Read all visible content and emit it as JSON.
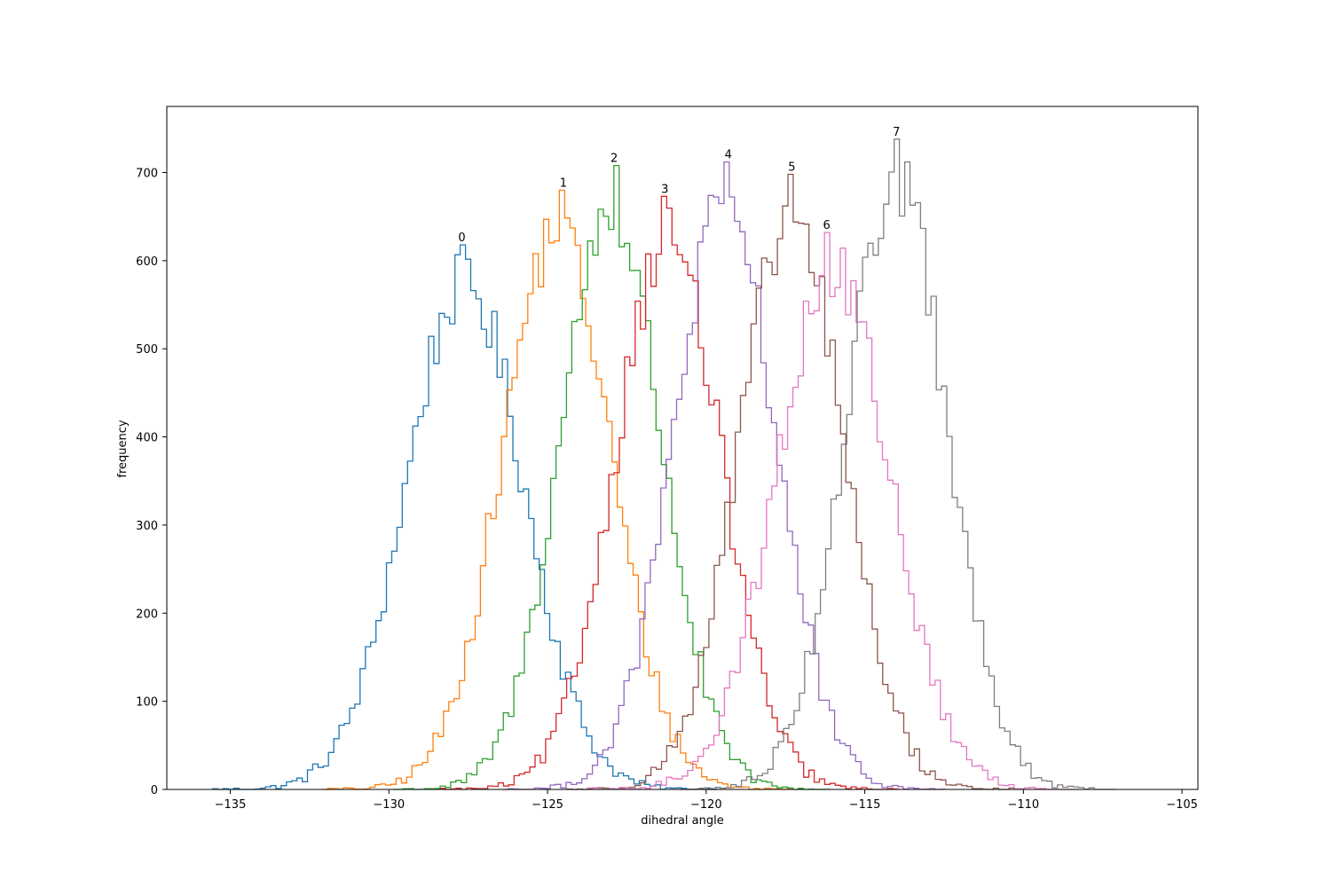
{
  "chart_data": {
    "type": "histogram",
    "xlabel": "dihedral angle",
    "ylabel": "frequency",
    "xlim": [
      -137,
      -104.5
    ],
    "ylim": [
      0,
      775
    ],
    "xticks": [
      -135,
      -130,
      -125,
      -120,
      -115,
      -110,
      -105
    ],
    "yticks": [
      0,
      100,
      200,
      300,
      400,
      500,
      600,
      700
    ],
    "grid": false,
    "legend": "none",
    "series": [
      {
        "label": "0",
        "color": "#1f77b4",
        "mean": -127.6,
        "sd": 1.85,
        "peak_x": -127.7,
        "peak_y": 618
      },
      {
        "label": "1",
        "color": "#ff7f0e",
        "mean": -124.7,
        "sd": 1.72,
        "peak_x": -124.5,
        "peak_y": 680
      },
      {
        "label": "2",
        "color": "#2ca02c",
        "mean": -123.0,
        "sd": 1.6,
        "peak_x": -122.9,
        "peak_y": 708
      },
      {
        "label": "3",
        "color": "#d62728",
        "mean": -121.2,
        "sd": 1.67,
        "peak_x": -121.3,
        "peak_y": 673
      },
      {
        "label": "4",
        "color": "#9467bd",
        "mean": -119.4,
        "sd": 1.63,
        "peak_x": -119.3,
        "peak_y": 712
      },
      {
        "label": "5",
        "color": "#8c564b",
        "mean": -117.3,
        "sd": 1.65,
        "peak_x": -117.3,
        "peak_y": 698
      },
      {
        "label": "6",
        "color": "#e377c2",
        "mean": -116.0,
        "sd": 1.8,
        "peak_x": -116.2,
        "peak_y": 632
      },
      {
        "label": "7",
        "color": "#7f7f7f",
        "mean": -114.0,
        "sd": 1.6,
        "peak_x": -114.0,
        "peak_y": 738
      }
    ]
  }
}
